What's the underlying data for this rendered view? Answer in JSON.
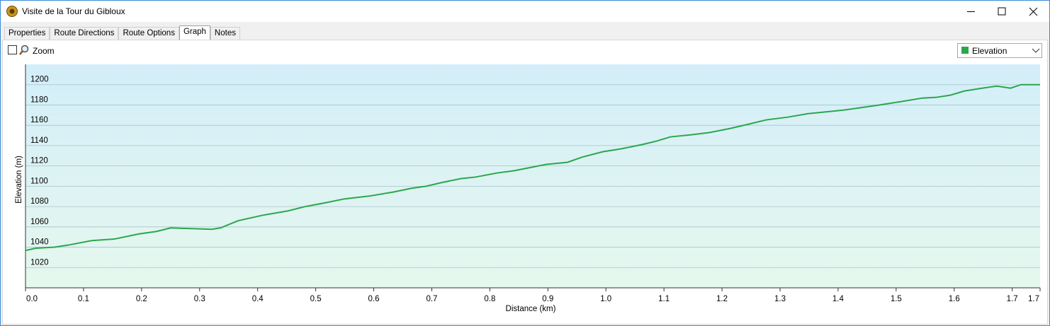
{
  "window": {
    "title": "Visite de la Tour du Gibloux"
  },
  "tabs": [
    "Properties",
    "Route Directions",
    "Route Options",
    "Graph",
    "Notes"
  ],
  "toolbar": {
    "zoom": "Zoom"
  },
  "chart_data": {
    "type": "line",
    "x_label": "Distance  (km)",
    "y_label": "Elevation (m)",
    "x": [
      0,
      0.018,
      0.05,
      0.073,
      0.114,
      0.153,
      0.195,
      0.226,
      0.25,
      0.287,
      0.321,
      0.336,
      0.366,
      0.409,
      0.452,
      0.482,
      0.519,
      0.549,
      0.592,
      0.635,
      0.665,
      0.69,
      0.72,
      0.751,
      0.775,
      0.812,
      0.842,
      0.873,
      0.897,
      0.934,
      0.958,
      0.995,
      1.026,
      1.062,
      1.087,
      1.111,
      1.148,
      1.178,
      1.215,
      1.245,
      1.276,
      1.313,
      1.349,
      1.386,
      1.41,
      1.435,
      1.471,
      1.508,
      1.545,
      1.569,
      1.593,
      1.618,
      1.648,
      1.673,
      1.681,
      1.697,
      1.715,
      1.748
    ],
    "series": [
      {
        "name": "Elevation",
        "color": "#2ca64c",
        "values": [
          1036.8,
          1039,
          1040,
          1042,
          1046.5,
          1048,
          1053,
          1055.5,
          1059,
          1058.3,
          1057.6,
          1059,
          1066,
          1071.5,
          1075.7,
          1080,
          1084,
          1087.5,
          1090.3,
          1094.4,
          1098,
          1100,
          1104,
          1107.6,
          1109,
          1113,
          1115.3,
          1118.8,
          1121.5,
          1123.6,
          1128.5,
          1134,
          1136.8,
          1141,
          1144.4,
          1148.6,
          1150.7,
          1152.8,
          1157,
          1161,
          1165.3,
          1168,
          1171.5,
          1173.6,
          1175,
          1177,
          1180,
          1183.3,
          1186.8,
          1187.5,
          1189.6,
          1193.8,
          1196.5,
          1198.6,
          1198,
          1196.5,
          1200,
          1200
        ]
      }
    ],
    "xlim": [
      0,
      1.748
    ],
    "ylim": [
      1000,
      1220
    ],
    "xticks": [
      {
        "value": 0,
        "label": "0.0"
      },
      0.1,
      0.2,
      0.3,
      0.4,
      0.5,
      0.6,
      0.7,
      0.8,
      0.9,
      {
        "value": 1,
        "label": "1.0"
      },
      1.1,
      1.2,
      1.3,
      1.4,
      1.5,
      1.6,
      1.7,
      {
        "value": 1.748,
        "label": "1.7"
      }
    ],
    "yticks": [
      1020,
      1040,
      1060,
      1080,
      1100,
      1120,
      1140,
      1160,
      1180,
      1200
    ],
    "grid": true
  }
}
